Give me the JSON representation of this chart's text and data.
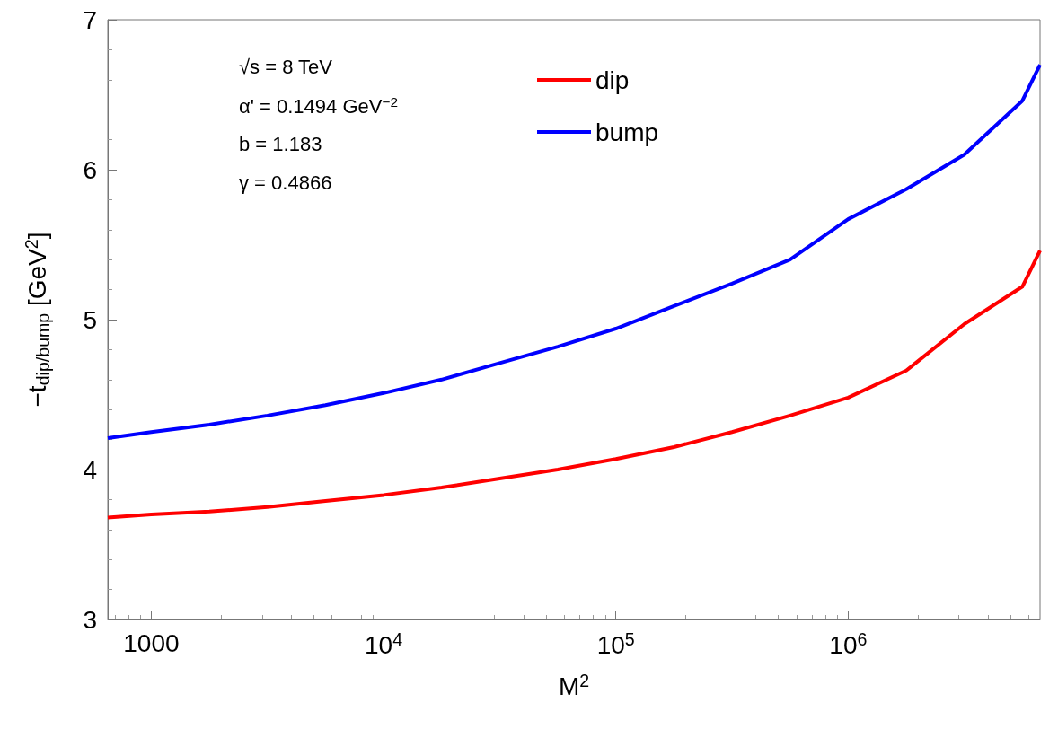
{
  "chart_data": {
    "type": "line",
    "xlabel": "M$^{2}$",
    "ylabel": "−t$_{dip/bump}$ [GeV$^{2}$]",
    "annotations": [
      "√s = 8 TeV",
      "α' = 0.1494 GeV$^{−2}$",
      "b = 1.183",
      "γ = 0.4866"
    ],
    "x": [
      650,
      1000,
      1778,
      3162,
      5623,
      10000,
      17783,
      31623,
      56234,
      100000,
      177828,
      316228,
      562341,
      1000000,
      1778279,
      3162278,
      5623413,
      6700000
    ],
    "series": [
      {
        "name": "dip",
        "color": "#ff0000",
        "values": [
          3.68,
          3.7,
          3.72,
          3.75,
          3.79,
          3.83,
          3.88,
          3.94,
          4.0,
          4.07,
          4.15,
          4.25,
          4.36,
          4.48,
          4.66,
          4.97,
          5.22,
          5.46
        ]
      },
      {
        "name": "bump",
        "color": "#0000ff",
        "values": [
          4.21,
          4.25,
          4.3,
          4.36,
          4.43,
          4.51,
          4.6,
          4.71,
          4.82,
          4.94,
          5.09,
          5.24,
          5.4,
          5.67,
          5.87,
          6.1,
          6.46,
          6.7
        ]
      }
    ],
    "log": "x",
    "xlim": [
      650,
      6700000
    ],
    "xticks": [
      1000,
      {
        "value": 10000,
        "label": "10$^{4}$"
      },
      {
        "value": 100000,
        "label": "10$^{5}$"
      },
      {
        "value": 1000000,
        "label": "10$^{6}$"
      }
    ],
    "ylim": [
      3,
      7
    ],
    "yticks": [
      3,
      4,
      5,
      6,
      7
    ],
    "grid": false,
    "legend": "top",
    "marker": "none",
    "line_style": "solid"
  }
}
